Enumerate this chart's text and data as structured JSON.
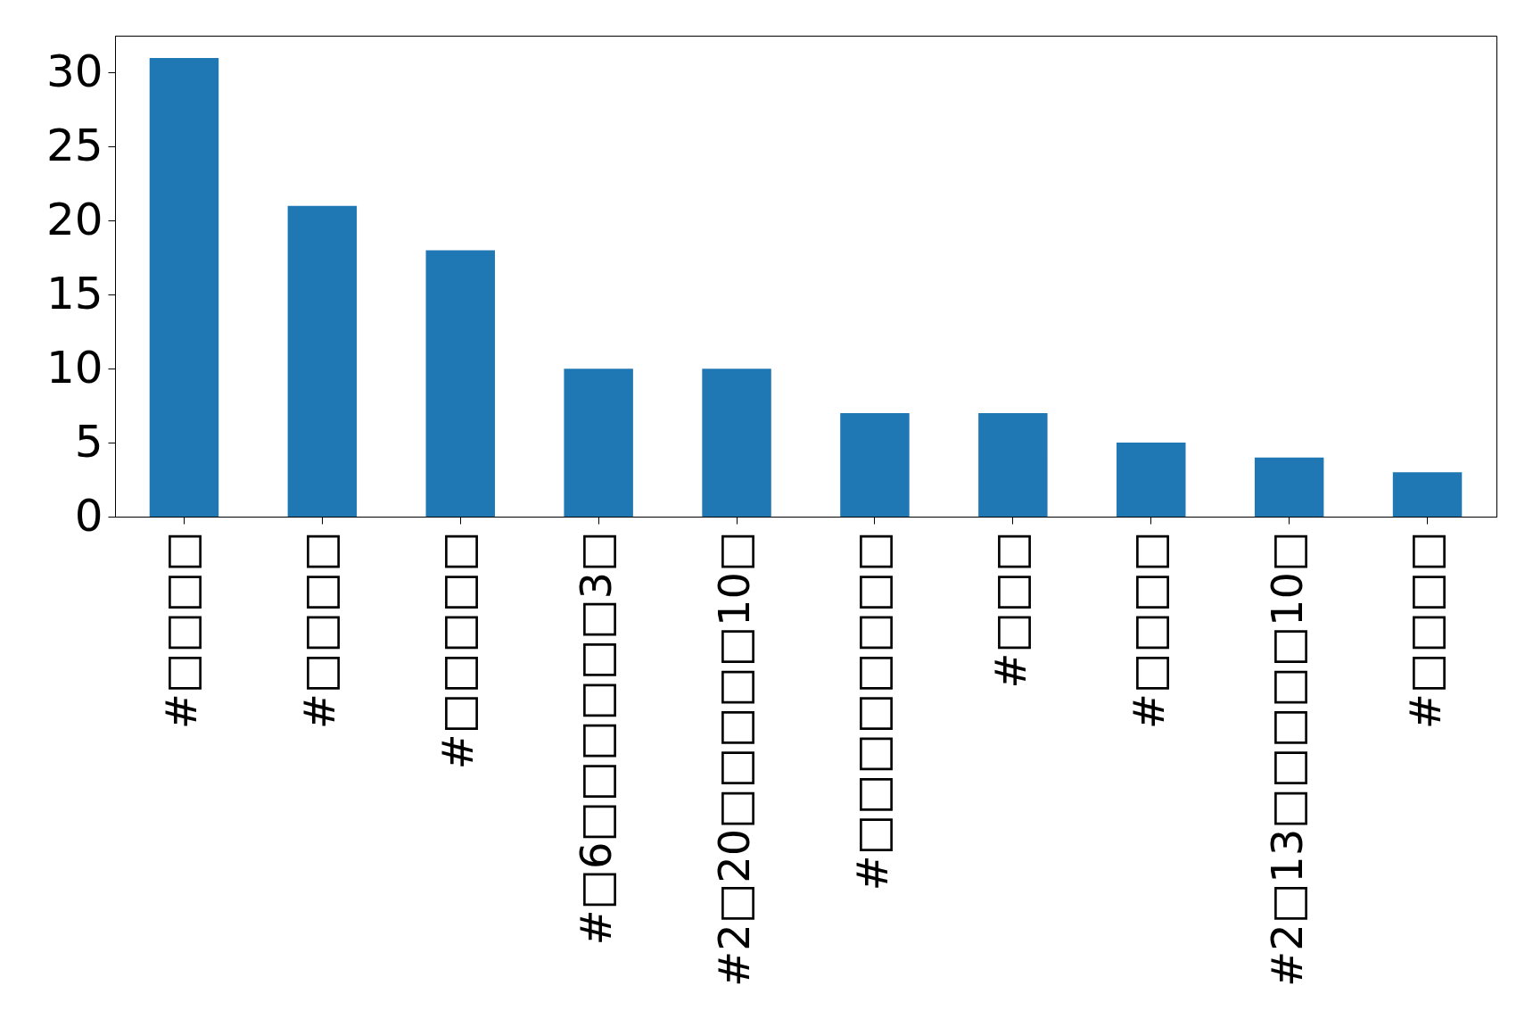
{
  "chart_data": {
    "type": "bar",
    "categories": [
      "#□□□□",
      "#□□□□",
      "#□□□□□",
      "#□6□□□□□□3□",
      "#2□20□□□□□10□",
      "#□□□□□□□□",
      "#□□□",
      "#□□□□",
      "#2□13□□□□□10□",
      "#□□□□"
    ],
    "values": [
      31,
      21,
      18,
      10,
      10,
      7,
      7,
      5,
      4,
      3
    ],
    "color": "#1f77b4",
    "ylim": [
      0,
      32.5
    ],
    "yticks": [
      0,
      5,
      10,
      15,
      20,
      25,
      30
    ],
    "grid": false
  }
}
